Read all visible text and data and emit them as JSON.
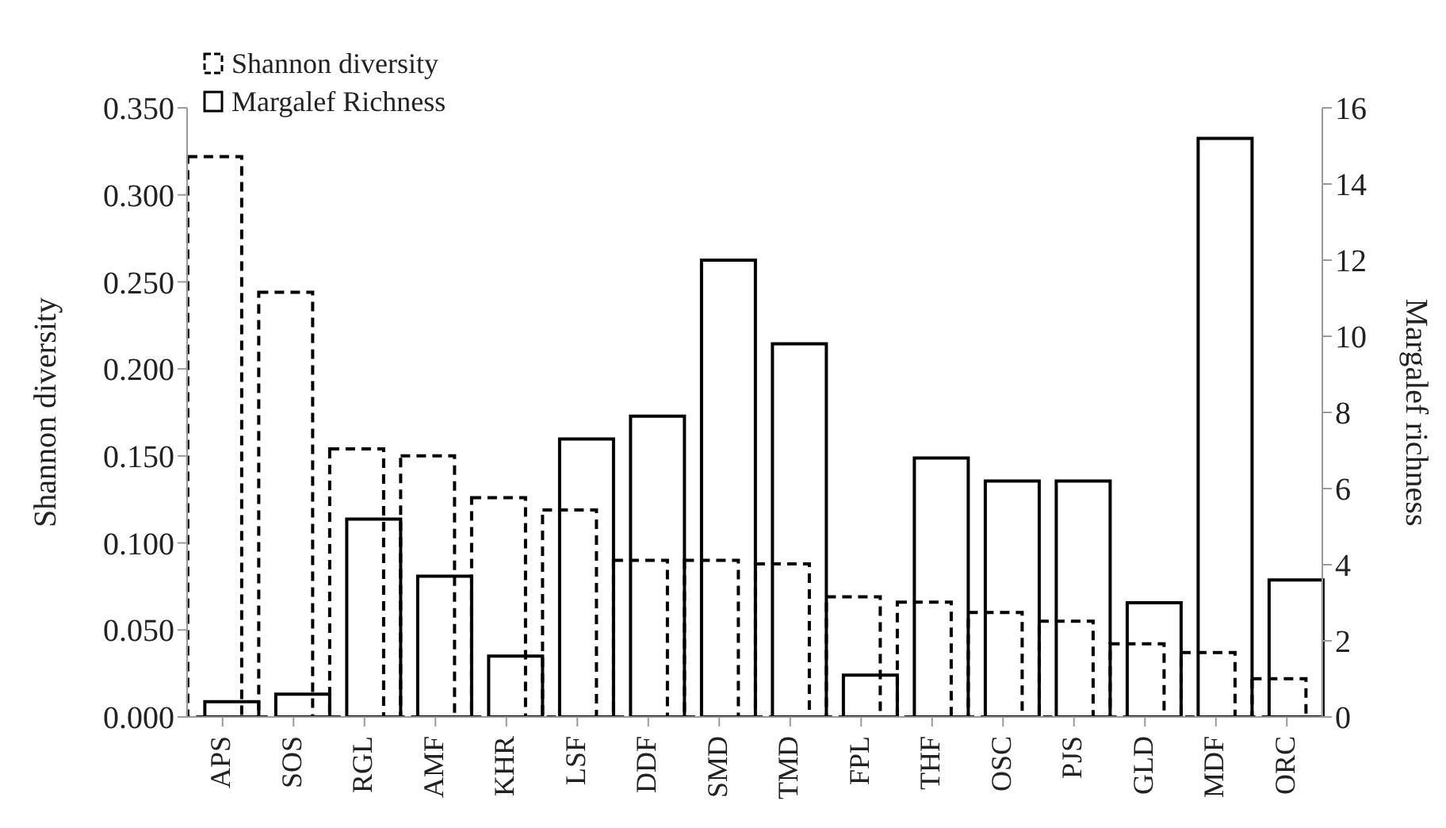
{
  "chart_data": {
    "type": "bar",
    "categories": [
      "APS",
      "SOS",
      "RGL",
      "AMF",
      "KHR",
      "LSF",
      "DDF",
      "SMD",
      "TMD",
      "FPL",
      "THF",
      "OSC",
      "PJS",
      "GLD",
      "MDF",
      "ORC"
    ],
    "series": [
      {
        "name": "Margalef Richness",
        "color": "#000000",
        "line_style": "solid",
        "axis": "y2",
        "values": [
          0.4,
          0.6,
          5.2,
          3.7,
          1.6,
          7.3,
          7.9,
          12.0,
          9.8,
          1.1,
          6.8,
          6.2,
          6.2,
          3.0,
          15.2,
          3.6
        ]
      },
      {
        "name": "Shannon diversity",
        "color": "#000000",
        "line_style": "dashed",
        "axis": "y",
        "values": [
          0.322,
          0.244,
          0.154,
          0.15,
          0.126,
          0.119,
          0.09,
          0.09,
          0.088,
          0.069,
          0.066,
          0.06,
          0.055,
          0.042,
          0.037,
          0.022
        ]
      }
    ],
    "ylabel": "Shannon diversity",
    "y2label": "Margalef richness",
    "ylim": [
      0,
      0.35
    ],
    "yticks": [
      {
        "value": 0,
        "label": "0.000"
      },
      {
        "value": 0.05,
        "label": "0.050"
      },
      {
        "value": 0.1,
        "label": "0.100"
      },
      {
        "value": 0.15,
        "label": "0.150"
      },
      {
        "value": 0.2,
        "label": "0.200"
      },
      {
        "value": 0.25,
        "label": "0.250"
      },
      {
        "value": 0.3,
        "label": "0.300"
      },
      {
        "value": 0.35,
        "label": "0.350"
      }
    ],
    "y2lim": [
      0,
      16
    ],
    "y2ticks": [
      0,
      2,
      4,
      6,
      8,
      10,
      12,
      14,
      16
    ],
    "legend": "top"
  }
}
